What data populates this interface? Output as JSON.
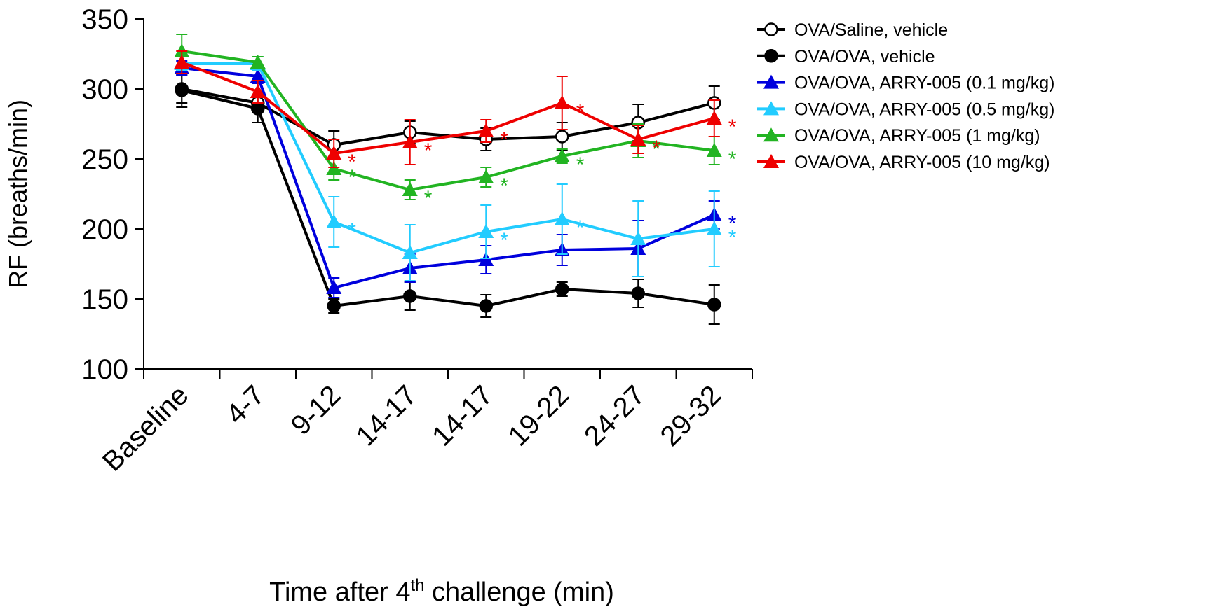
{
  "chart_data": {
    "type": "line",
    "ylabel": "RF (breaths/min)",
    "xlabel": [
      "Time after 4",
      "th",
      " challenge (min)"
    ],
    "categories": [
      "Baseline",
      "4-7",
      "9-12",
      "14-17",
      "14-17",
      "19-22",
      "24-27",
      "29-32"
    ],
    "ylim": [
      100,
      350
    ],
    "yticks": [
      100,
      150,
      200,
      250,
      300,
      350
    ],
    "legend": "top-right",
    "series": [
      {
        "name": "OVA/Saline, vehicle",
        "color": "#000000",
        "marker": "open-circle",
        "values": [
          300,
          290,
          260,
          269,
          264,
          266,
          276,
          290
        ],
        "errors": [
          10,
          5,
          10,
          8,
          8,
          10,
          13,
          12
        ],
        "sig_labels": [
          null,
          null,
          null,
          null,
          null,
          null,
          null,
          null
        ]
      },
      {
        "name": "OVA/OVA, vehicle",
        "color": "#000000",
        "marker": "circle",
        "values": [
          299,
          286,
          145,
          152,
          145,
          157,
          154,
          146
        ],
        "errors": [
          12,
          10,
          5,
          10,
          8,
          5,
          10,
          14
        ],
        "sig_labels": [
          null,
          null,
          null,
          null,
          null,
          null,
          null,
          null
        ]
      },
      {
        "name": "OVA/OVA, ARRY-005 (0.1 mg/kg)",
        "color": "#0000dd",
        "marker": "triangle",
        "values": [
          315,
          309,
          158,
          172,
          178,
          185,
          186,
          210
        ],
        "errors": [
          5,
          5,
          7,
          10,
          10,
          11,
          20,
          10
        ],
        "sig_labels": [
          null,
          null,
          null,
          null,
          null,
          null,
          null,
          "*"
        ]
      },
      {
        "name": "OVA/OVA, ARRY-005 (0.5 mg/kg)",
        "color": "#22ccff",
        "marker": "triangle",
        "values": [
          318,
          318,
          205,
          183,
          198,
          207,
          193,
          200
        ],
        "errors": [
          5,
          5,
          18,
          20,
          19,
          25,
          27,
          27
        ],
        "sig_labels": [
          null,
          null,
          "*",
          null,
          "*",
          "*",
          null,
          "*"
        ]
      },
      {
        "name": "OVA/OVA, ARRY-005 (1 mg/kg)",
        "color": "#22b422",
        "marker": "triangle",
        "values": [
          327,
          319,
          243,
          228,
          237,
          252,
          263,
          256
        ],
        "errors": [
          12,
          4,
          8,
          7,
          7,
          5,
          12,
          10
        ],
        "sig_labels": [
          null,
          null,
          "*",
          "*",
          "*",
          "*",
          "*",
          "*"
        ]
      },
      {
        "name": "OVA/OVA, ARRY-005 (10 mg/kg)",
        "color": "#ee0000",
        "marker": "triangle",
        "values": [
          319,
          298,
          254,
          262,
          270,
          290,
          264,
          279
        ],
        "errors": [
          8,
          8,
          10,
          16,
          8,
          19,
          10,
          13
        ],
        "sig_labels": [
          null,
          null,
          "*",
          "*",
          "*",
          "*",
          "*",
          "*"
        ]
      }
    ]
  }
}
